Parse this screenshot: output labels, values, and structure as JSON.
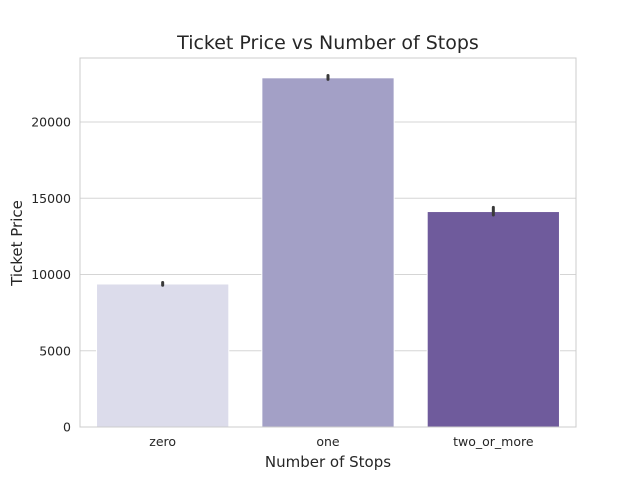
{
  "chart_data": {
    "type": "bar",
    "title": "Ticket Price vs Number of Stops",
    "xlabel": "Number of Stops",
    "ylabel": "Ticket Price",
    "categories": [
      "zero",
      "one",
      "two_or_more"
    ],
    "values": [
      9380,
      22900,
      14130
    ],
    "error_bars": [
      [
        9300,
        9480
      ],
      [
        22800,
        23050
      ],
      [
        13900,
        14400
      ]
    ],
    "bar_colors": [
      "#dcdceb",
      "#a3a0c6",
      "#6f5b9c"
    ],
    "errorbar_color": "#3a3a3a",
    "ylim": [
      0,
      24200
    ],
    "yticks": [
      0,
      5000,
      10000,
      15000,
      20000
    ],
    "grid": true,
    "grid_axis": "y",
    "legend": "none"
  }
}
